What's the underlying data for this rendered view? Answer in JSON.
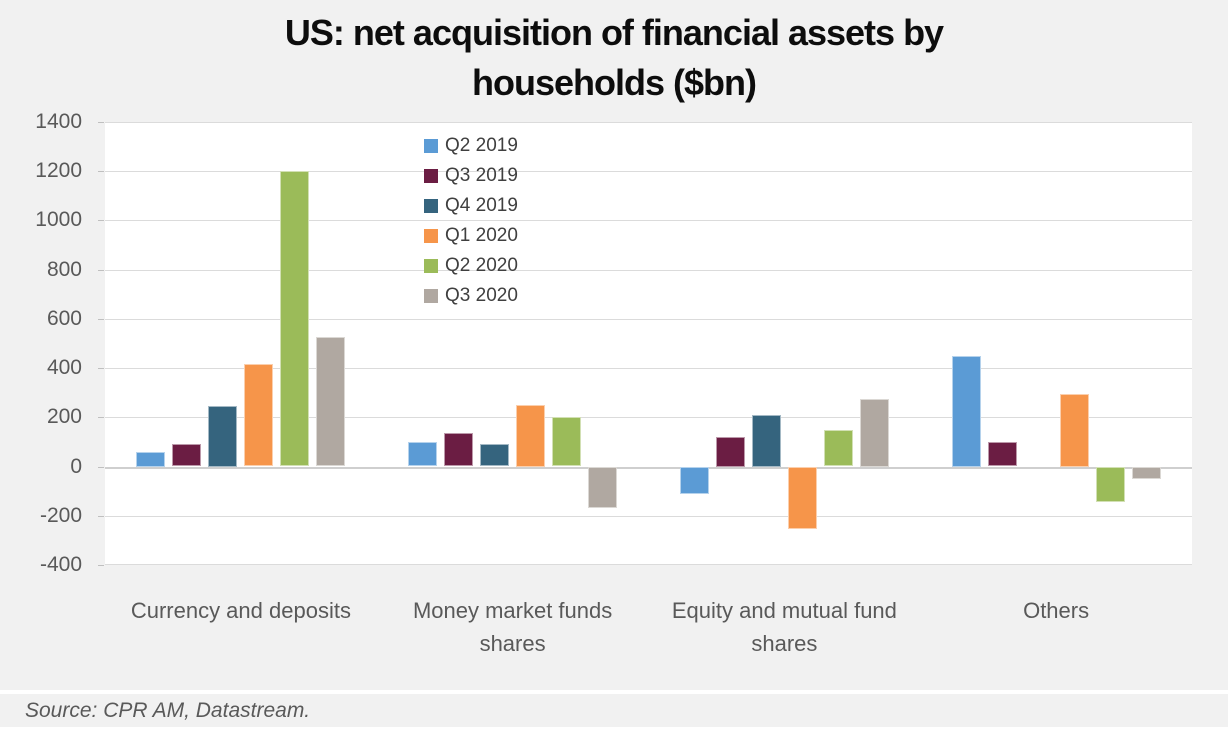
{
  "title_lines": [
    "US: net acquisition of financial assets by",
    "households ($bn)"
  ],
  "source": "Source: CPR AM, Datastream.",
  "colors": {
    "card_background": "#F1F1F1",
    "plot_background": "#FFFFFF",
    "gridline": "#DBDBDB",
    "zero_line": "#CFCFCF",
    "axis_text": "#595959",
    "legend_text": "#3F3F3F",
    "title_text": "#0D0D0D"
  },
  "chart_data": {
    "type": "bar",
    "title": "US: net acquisition of financial assets by households ($bn)",
    "xlabel": "",
    "ylabel": "",
    "ylim": [
      -400,
      1400
    ],
    "ytick_interval": 200,
    "yticks": [
      1400,
      1200,
      1000,
      800,
      600,
      400,
      200,
      0,
      -200,
      -400
    ],
    "grid": true,
    "legend_position": "top-center-inside",
    "categories": [
      "Currency and deposits",
      "Money market funds shares",
      "Equity and mutual fund shares",
      "Others"
    ],
    "series": [
      {
        "name": "Q2 2019",
        "color": "#5B9BD5",
        "values": [
          60,
          100,
          -110,
          450
        ]
      },
      {
        "name": "Q3 2019",
        "color": "#6B1D43",
        "values": [
          90,
          135,
          120,
          100
        ]
      },
      {
        "name": "Q4 2019",
        "color": "#35647E",
        "values": [
          245,
          90,
          210,
          0
        ]
      },
      {
        "name": "Q1 2020",
        "color": "#F6954A",
        "values": [
          415,
          250,
          -255,
          295
        ]
      },
      {
        "name": "Q2 2020",
        "color": "#9BBB59",
        "values": [
          1200,
          200,
          150,
          -145
        ]
      },
      {
        "name": "Q3 2020",
        "color": "#B0A8A1",
        "values": [
          525,
          -170,
          275,
          -50
        ]
      }
    ]
  }
}
